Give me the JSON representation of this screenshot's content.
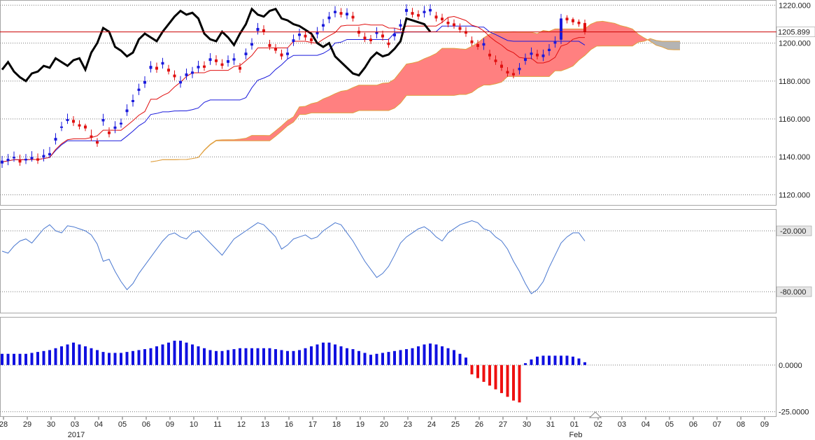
{
  "chart_data": {
    "type": "candlestick-ichimoku",
    "current_price_label": "1205.899",
    "current_price": 1205.899,
    "colors": {
      "bull": "#1a1adc",
      "bear": "#e01010",
      "tenkan": "#e01010",
      "kijun": "#1a1adc",
      "chikou": "#000000",
      "cloud_bull": "#ff8080",
      "cloud_bear": "#b4b4b4",
      "senkou_edge": "#e0a040",
      "oscillator": "#4a78d0",
      "hist_pos": "#1010e0",
      "hist_neg": "#ee1010",
      "price_line": "#cc0000"
    },
    "price_panel": {
      "ylim": [
        1115,
        1222
      ],
      "tick_values": [
        1120,
        1140,
        1160,
        1180,
        1200,
        1220
      ],
      "tick_labels": [
        "1120.000",
        "1140.000",
        "1160.000",
        "1180.000",
        "1200.000",
        "1220.000"
      ]
    },
    "oscillator_panel": {
      "ylim": [
        -100,
        0
      ],
      "tick_values": [
        -20,
        -80
      ],
      "tick_labels": [
        "-20.000",
        "-80.000"
      ]
    },
    "histogram_panel": {
      "ylim": [
        -27,
        25
      ],
      "tick_values": [
        0,
        -25
      ],
      "tick_labels": [
        "0.0000",
        "-25.0000"
      ]
    },
    "x_axis": {
      "date_labels": [
        "28",
        "29",
        "30",
        "03",
        "04",
        "05",
        "06",
        "09",
        "10",
        "11",
        "12",
        "13",
        "16",
        "17",
        "18",
        "19",
        "20",
        "23",
        "24",
        "25",
        "26",
        "27",
        "30",
        "31",
        "01",
        "02",
        "03",
        "04",
        "05",
        "06",
        "07",
        "08",
        "09"
      ],
      "label_bars": [
        0,
        4,
        8,
        12,
        16,
        20,
        24,
        28,
        32,
        36,
        40,
        44,
        48,
        52,
        56,
        60,
        64,
        68,
        72,
        76,
        80,
        84,
        88,
        92,
        96,
        100,
        104,
        108,
        112,
        116,
        120,
        124,
        128
      ],
      "secondary_labels": [
        "2017",
        "Feb"
      ],
      "secondary_label_bars": [
        12,
        96
      ]
    },
    "bars": {
      "count": 99,
      "close": [
        1138,
        1139,
        1140,
        1137,
        1139,
        1140,
        1138,
        1141,
        1142,
        1150,
        1156,
        1160,
        1158,
        1156,
        1155,
        1150,
        1147,
        1160,
        1152,
        1156,
        1158,
        1165,
        1170,
        1176,
        1180,
        1188,
        1186,
        1190,
        1185,
        1182,
        1180,
        1184,
        1185,
        1188,
        1187,
        1192,
        1190,
        1188,
        1191,
        1192,
        1186,
        1195,
        1200,
        1208,
        1206,
        1198,
        1196,
        1193,
        1195,
        1202,
        1205,
        1203,
        1201,
        1206,
        1210,
        1214,
        1217,
        1215,
        1216,
        1213,
        1205,
        1202,
        1201,
        1206,
        1203,
        1199,
        1205,
        1210,
        1218,
        1215,
        1214,
        1217,
        1218,
        1213,
        1212,
        1210,
        1209,
        1207,
        1205,
        1200,
        1198,
        1200,
        1193,
        1190,
        1187,
        1184,
        1183,
        1187,
        1192,
        1195,
        1193,
        1194,
        1197,
        1201,
        1213,
        1212,
        1211,
        1210,
        1206
      ],
      "open": [
        1136.5,
        1137.8,
        1139.2,
        1138.5,
        1138.1,
        1138.8,
        1139.2,
        1139.6,
        1140.8,
        1148.6,
        1155.3,
        1158.9,
        1159.5,
        1157.2,
        1156.5,
        1151.3,
        1148.2,
        1158.7,
        1153.4,
        1154.8,
        1157.1,
        1163.6,
        1168.9,
        1174.8,
        1178.6,
        1186.4,
        1187.5,
        1188.7,
        1186.5,
        1183.4,
        1178.7,
        1182.6,
        1183.8,
        1186.7,
        1188.2,
        1190.6,
        1191.4,
        1189.3,
        1189.6,
        1190.8,
        1187.5,
        1193.6,
        1198.7,
        1206.4,
        1207.3,
        1199.5,
        1197.4,
        1194.5,
        1193.7,
        1200.6,
        1203.8,
        1204.4,
        1202.5,
        1204.6,
        1208.7,
        1212.6,
        1215.8,
        1216.4,
        1214.6,
        1214.4,
        1206.5,
        1203.4,
        1202.3,
        1204.8,
        1204.5,
        1200.3,
        1203.6,
        1208.7,
        1216.5,
        1216.4,
        1215.3,
        1215.8,
        1216.7,
        1214.5,
        1213.4,
        1211.3,
        1210.4,
        1208.5,
        1206.3,
        1201.4,
        1199.5,
        1198.7,
        1194.4,
        1191.3,
        1188.6,
        1185.3,
        1184.2,
        1185.7,
        1190.6,
        1193.8,
        1194.4,
        1192.6,
        1195.8,
        1199.7,
        1201.8,
        1213.4,
        1212.6,
        1211.3,
        1210.6
      ],
      "high": [
        1140.5,
        1141.5,
        1142.8,
        1141.2,
        1141.5,
        1143,
        1141.8,
        1144,
        1145.2,
        1152.5,
        1158.5,
        1162.8,
        1161.5,
        1159.3,
        1157.5,
        1154.4,
        1149.9,
        1162.7,
        1155.6,
        1158.8,
        1160.2,
        1167.7,
        1172.9,
        1178.6,
        1182.5,
        1190.5,
        1189.7,
        1192.2,
        1188.5,
        1185.6,
        1182.6,
        1186.6,
        1187.4,
        1190.7,
        1190.4,
        1194.7,
        1193.6,
        1191.5,
        1193.5,
        1194.6,
        1189.5,
        1197.2,
        1202.6,
        1210.6,
        1209.4,
        1201.7,
        1199.5,
        1196.6,
        1197.5,
        1204.5,
        1207.6,
        1206.5,
        1204.6,
        1208.5,
        1212.7,
        1216.4,
        1219.5,
        1218.5,
        1218.4,
        1216.5,
        1208.6,
        1205.5,
        1204.3,
        1208.4,
        1206.6,
        1202.4,
        1207.8,
        1212.5,
        1220.5,
        1218.6,
        1217.3,
        1219.6,
        1220.5,
        1216.5,
        1215.5,
        1213.4,
        1212.5,
        1210.4,
        1208.5,
        1203.5,
        1201.6,
        1202.6,
        1196.5,
        1193.5,
        1190.6,
        1187.3,
        1186.4,
        1189.5,
        1194.5,
        1197.7,
        1196.5,
        1196.6,
        1199.5,
        1203.6,
        1215.4,
        1214.7,
        1213.5,
        1212.5,
        1212.4
      ],
      "low": [
        1134.2,
        1135.6,
        1137.4,
        1135.3,
        1136.2,
        1137.5,
        1136.3,
        1137.6,
        1139.4,
        1146.5,
        1153.6,
        1157.4,
        1156.3,
        1154.5,
        1153.6,
        1148.4,
        1145.3,
        1156.4,
        1150.3,
        1152.5,
        1155.4,
        1161.6,
        1166.5,
        1172.6,
        1176.4,
        1184.5,
        1184.3,
        1186.6,
        1183.5,
        1180.4,
        1176.5,
        1180.6,
        1181.5,
        1184.4,
        1185.4,
        1188.5,
        1188.3,
        1186.4,
        1187.6,
        1188.5,
        1184.3,
        1191.4,
        1196.6,
        1204.5,
        1204.3,
        1196.4,
        1194.5,
        1191.3,
        1191.6,
        1198.5,
        1201.6,
        1201.4,
        1199.3,
        1202.5,
        1206.4,
        1210.5,
        1213.6,
        1213.5,
        1212.6,
        1211.4,
        1203.3,
        1200.5,
        1199.6,
        1202.5,
        1201.3,
        1197.5,
        1201.4,
        1206.6,
        1214.5,
        1213.4,
        1212.3,
        1213.5,
        1214.6,
        1211.4,
        1210.5,
        1208.4,
        1207.6,
        1205.5,
        1203.3,
        1198.4,
        1196.5,
        1196.4,
        1191.3,
        1188.5,
        1185.4,
        1182.3,
        1181.4,
        1183.5,
        1188.6,
        1191.5,
        1191.4,
        1190.5,
        1193.4,
        1197.6,
        1199.5,
        1210.4,
        1209.5,
        1208.6,
        1204.5
      ]
    },
    "oscillator_values": [
      -40,
      -42,
      -35,
      -30,
      -28,
      -32,
      -25,
      -18,
      -14,
      -20,
      -22,
      -15,
      -16,
      -18,
      -20,
      -24,
      -33,
      -50,
      -48,
      -60,
      -70,
      -78,
      -72,
      -62,
      -54,
      -46,
      -38,
      -30,
      -24,
      -22,
      -26,
      -28,
      -22,
      -20,
      -26,
      -32,
      -38,
      -44,
      -36,
      -28,
      -24,
      -20,
      -16,
      -12,
      -14,
      -20,
      -26,
      -38,
      -34,
      -28,
      -26,
      -24,
      -28,
      -26,
      -20,
      -16,
      -12,
      -14,
      -22,
      -30,
      -40,
      -50,
      -58,
      -66,
      -62,
      -55,
      -44,
      -32,
      -26,
      -22,
      -18,
      -16,
      -20,
      -26,
      -30,
      -22,
      -18,
      -14,
      -12,
      -10,
      -12,
      -18,
      -20,
      -26,
      -30,
      -38,
      -50,
      -60,
      -72,
      -82,
      -78,
      -70,
      -56,
      -44,
      -32,
      -26,
      -22,
      -22,
      -30
    ],
    "histogram_values": [
      6,
      6,
      6,
      6,
      6,
      6.5,
      7,
      7.5,
      8,
      9,
      10,
      11,
      12,
      11,
      10,
      9,
      8,
      7,
      6.5,
      6.5,
      6.5,
      7,
      7.5,
      8,
      8.5,
      9,
      10,
      11,
      12,
      13,
      13,
      12,
      11,
      10,
      9,
      8,
      7.5,
      7.5,
      8,
      8.5,
      9,
      9,
      9,
      9,
      9,
      9,
      8.5,
      8,
      7.5,
      7.5,
      8,
      9,
      10,
      11,
      12,
      12,
      11,
      10,
      9,
      8.5,
      7.5,
      6.5,
      5.5,
      6,
      6.5,
      7,
      7.5,
      8,
      8.5,
      9,
      10,
      11,
      11.5,
      11,
      10,
      9,
      8,
      6,
      4,
      -1,
      -2,
      -2,
      -2,
      -1,
      -1,
      -1,
      0,
      0,
      1,
      3,
      4.5,
      5,
      5,
      5,
      5,
      5,
      4.5,
      3.5,
      1.5
    ],
    "histogram_neg_values": [
      -3,
      -5,
      -7,
      -9,
      -11,
      -13,
      -15,
      -17,
      -19,
      -20,
      -21,
      -21.5,
      -21,
      -19,
      -17,
      -14,
      -11,
      -8,
      -5,
      -2,
      0,
      4,
      8,
      11,
      12,
      12
    ]
  }
}
